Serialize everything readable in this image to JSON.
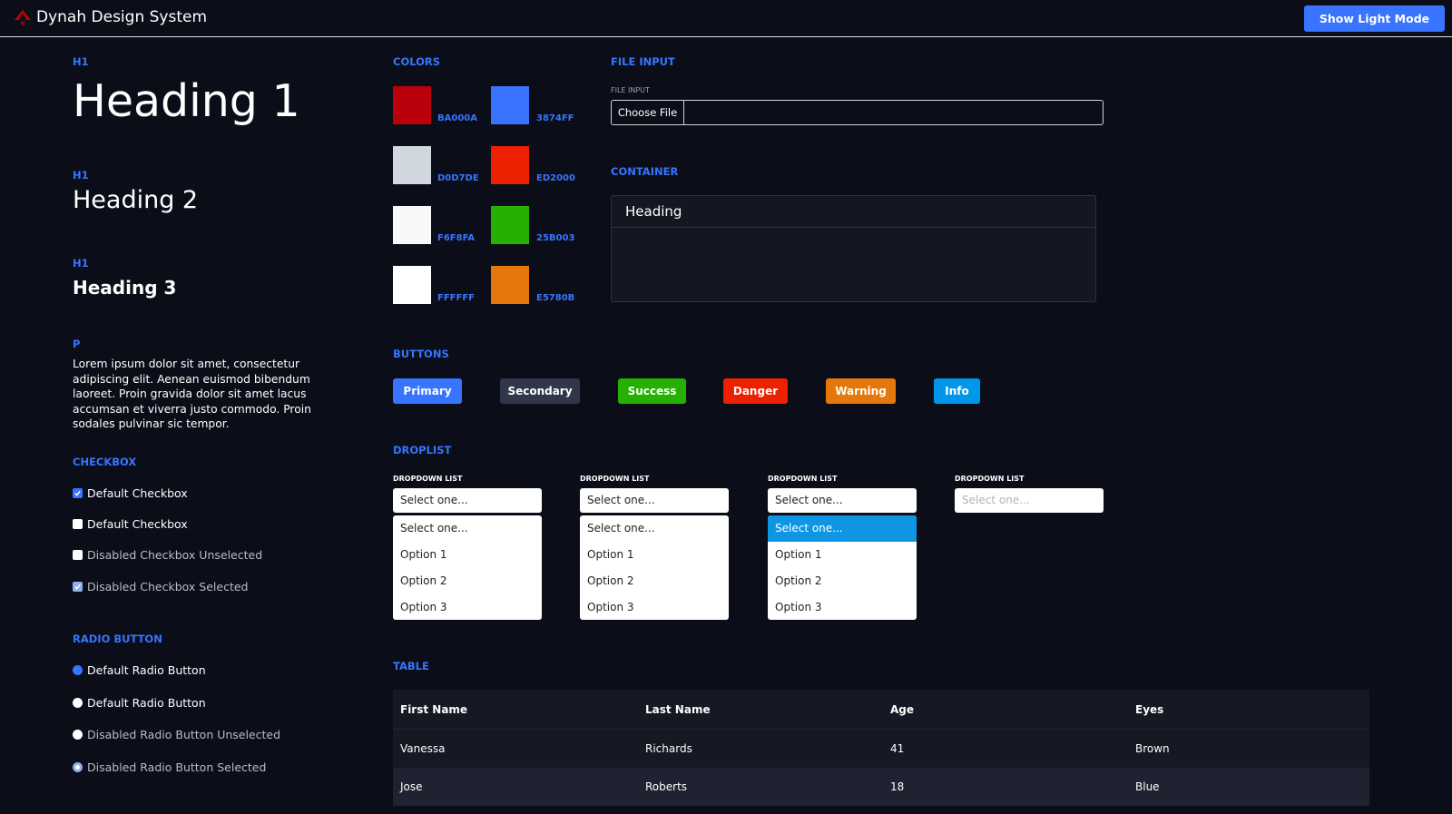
{
  "app": {
    "title": "Dynah Design System",
    "mode_button": "Show Light Mode"
  },
  "typography": {
    "h1_label": "H1",
    "h1_text": "Heading 1",
    "h2_label": "H1",
    "h2_text": "Heading 2",
    "h3_label": "H1",
    "h3_text": "Heading 3",
    "p_label": "P",
    "p_text": "Lorem ipsum dolor sit amet, consectetur adipiscing elit. Aenean euismod bibendum laoreet. Proin gravida dolor sit amet lacus accumsan et viverra justo commodo. Proin sodales pulvinar sic tempor."
  },
  "checkbox": {
    "label": "CHECKBOX",
    "items": [
      {
        "label": "Default Checkbox",
        "checked": true,
        "disabled": false
      },
      {
        "label": "Default Checkbox",
        "checked": false,
        "disabled": false
      },
      {
        "label": "Disabled Checkbox Unselected",
        "checked": false,
        "disabled": true
      },
      {
        "label": "Disabled Checkbox Selected",
        "checked": true,
        "disabled": true
      }
    ]
  },
  "radio": {
    "label": "RADIO BUTTON",
    "items": [
      {
        "label": "Default Radio Button",
        "selected": true,
        "disabled": false
      },
      {
        "label": "Default Radio Button",
        "selected": false,
        "disabled": false
      },
      {
        "label": "Disabled Radio Button Unselected",
        "selected": false,
        "disabled": true
      },
      {
        "label": "Disabled Radio Button Selected",
        "selected": true,
        "disabled": true
      }
    ]
  },
  "colors": {
    "label": "COLORS",
    "swatches": [
      {
        "hex": "BA000A",
        "color": "#BA000A"
      },
      {
        "hex": "3874FF",
        "color": "#3874FF"
      },
      {
        "hex": "D0D7DE",
        "color": "#D0D7DE"
      },
      {
        "hex": "ED2000",
        "color": "#ED2000"
      },
      {
        "hex": "F6F8FA",
        "color": "#F6F8FA"
      },
      {
        "hex": "25B003",
        "color": "#25B003"
      },
      {
        "hex": "FFFFFF",
        "color": "#FFFFFF"
      },
      {
        "hex": "E5780B",
        "color": "#E5780B"
      }
    ]
  },
  "file_input": {
    "label": "FILE INPUT",
    "field_label": "FILE INPUT",
    "button": "Choose File"
  },
  "container": {
    "label": "CONTAINER",
    "heading": "Heading"
  },
  "buttons": {
    "label": "BUTTONS",
    "items": [
      {
        "label": "Primary",
        "color": "#3874ff"
      },
      {
        "label": "Secondary",
        "color": "#31374a"
      },
      {
        "label": "Success",
        "color": "#25b003"
      },
      {
        "label": "Danger",
        "color": "#ed2000"
      },
      {
        "label": "Warning",
        "color": "#e5780b"
      },
      {
        "label": "Info",
        "color": "#0097eb"
      }
    ]
  },
  "droplist": {
    "label": "DROPLIST",
    "dropdowns": [
      {
        "field_label": "DROPDOWN LIST",
        "value": "Select one...",
        "options": [
          "Select one...",
          "Option 1",
          "Option 2",
          "Option 3"
        ],
        "selected_index": null
      },
      {
        "field_label": "DROPDOWN LIST",
        "value": "Select one...",
        "options": [
          "Select one...",
          "Option 1",
          "Option 2",
          "Option 3"
        ],
        "selected_index": null
      },
      {
        "field_label": "DROPDOWN LIST",
        "value": "Select one...",
        "options": [
          "Select one...",
          "Option 1",
          "Option 2",
          "Option 3"
        ],
        "selected_index": 0
      },
      {
        "field_label": "DROPDOWN LIST",
        "value": "Select one...",
        "disabled": true
      }
    ]
  },
  "table": {
    "label": "TABLE",
    "columns": [
      "First Name",
      "Last Name",
      "Age",
      "Eyes"
    ],
    "rows": [
      [
        "Vanessa",
        "Richards",
        "41",
        "Brown"
      ],
      [
        "Jose",
        "Roberts",
        "18",
        "Blue"
      ]
    ]
  }
}
